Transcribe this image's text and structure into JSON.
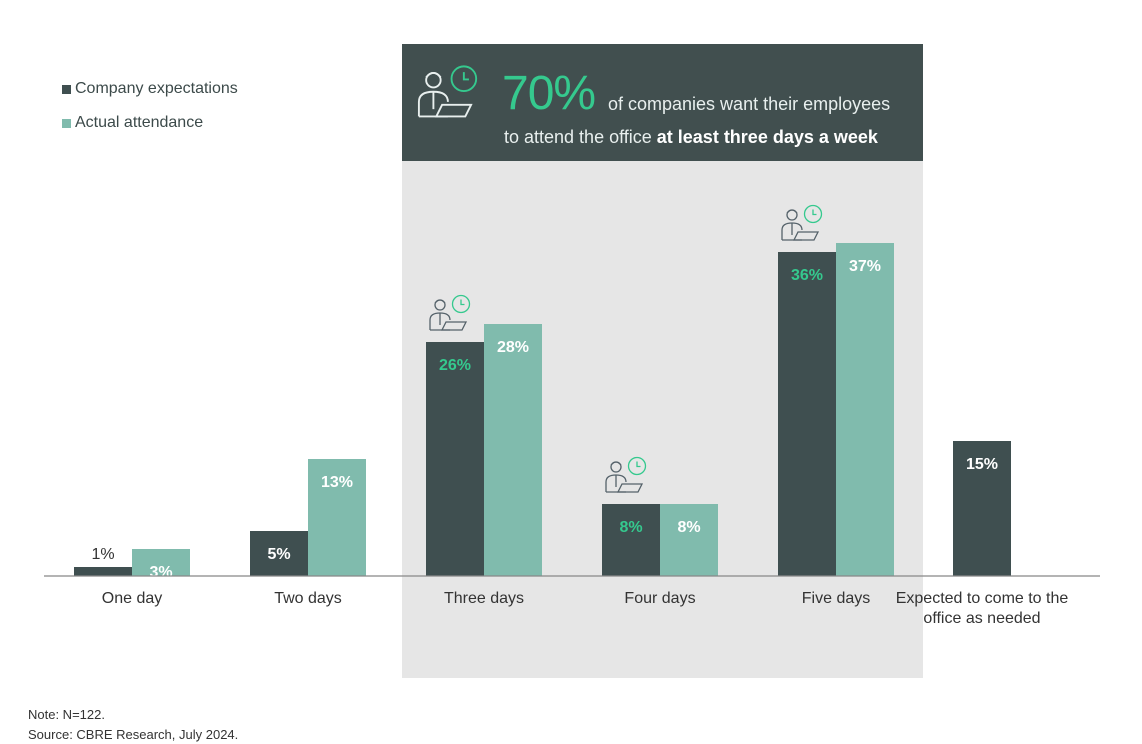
{
  "legend": {
    "expected_label": "Company expectations",
    "actual_label": "Actual attendance"
  },
  "banner": {
    "big_pct": "70%",
    "line1": "of companies want their employees",
    "line2_plain": "to attend the office ",
    "line2_bold": "at least three days a week"
  },
  "colors": {
    "expected": "#3f4f50",
    "actual": "#80bbad",
    "highlight_bg": "#e6e6e6",
    "banner_bg": "#414f4f",
    "accent": "#35c98e",
    "axis": "#888888"
  },
  "chart_data": {
    "type": "bar",
    "categories": [
      "One day",
      "Two days",
      "Three days",
      "Four days",
      "Five days",
      "Expected to come to the office as needed"
    ],
    "category_lines": [
      [
        "One day"
      ],
      [
        "Two days"
      ],
      [
        "Three days"
      ],
      [
        "Four days"
      ],
      [
        "Five days"
      ],
      [
        "Expected to come to the",
        "office as needed"
      ]
    ],
    "series": [
      {
        "name": "Company expectations",
        "values": [
          1,
          5,
          26,
          8,
          36,
          15
        ],
        "labels": [
          "1%",
          "5%",
          "26%",
          "8%",
          "36%",
          "15%"
        ]
      },
      {
        "name": "Actual attendance",
        "values": [
          3,
          13,
          28,
          8,
          37,
          null
        ],
        "labels": [
          "3%",
          "13%",
          "28%",
          "8%",
          "37%",
          ""
        ]
      }
    ],
    "highlighted_categories": [
      "Three days",
      "Four days",
      "Five days"
    ],
    "icon_categories": [
      "Three days",
      "Four days",
      "Five days"
    ],
    "ylim": [
      0,
      40
    ],
    "xlabel": "",
    "ylabel": ""
  },
  "footer": {
    "note": "Note: N=122.",
    "source": "Source: CBRE Research, July 2024."
  }
}
